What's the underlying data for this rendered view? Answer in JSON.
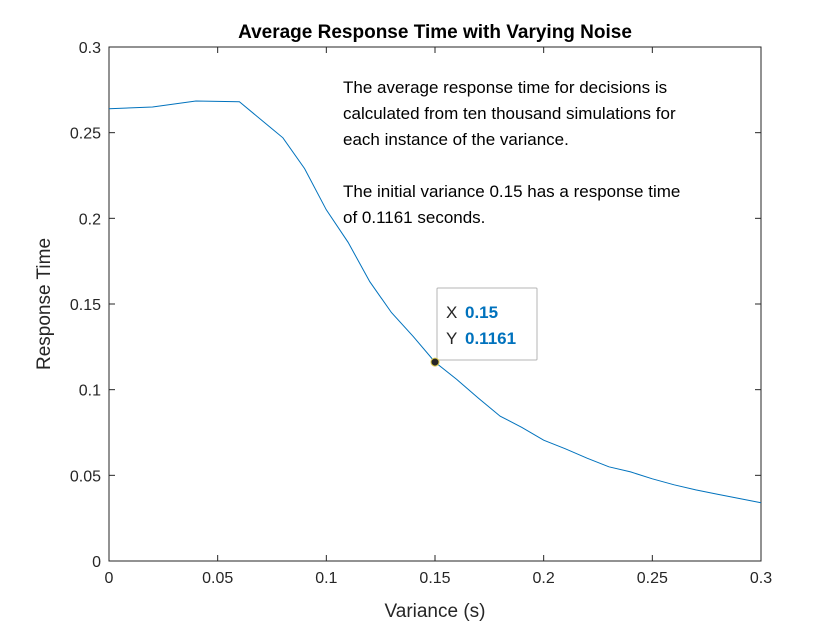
{
  "chart_data": {
    "type": "line",
    "title": "Average Response Time with Varying Noise",
    "xlabel": "Variance (s)",
    "ylabel": "Response Time",
    "xlim": [
      0,
      0.3
    ],
    "ylim": [
      0,
      0.3
    ],
    "xticks": [
      "0",
      "0.05",
      "0.1",
      "0.15",
      "0.2",
      "0.25",
      "0.3"
    ],
    "xtick_values": [
      0,
      0.05,
      0.1,
      0.15,
      0.2,
      0.25,
      0.3
    ],
    "yticks": [
      "0",
      "0.05",
      "0.1",
      "0.15",
      "0.2",
      "0.25",
      "0.3"
    ],
    "ytick_values": [
      0,
      0.05,
      0.1,
      0.15,
      0.2,
      0.25,
      0.3
    ],
    "grid": false,
    "series": [
      {
        "color": "#0072BD",
        "x": [
          0,
          0.02,
          0.04,
          0.06,
          0.08,
          0.09,
          0.1,
          0.11,
          0.12,
          0.13,
          0.14,
          0.15,
          0.16,
          0.17,
          0.18,
          0.19,
          0.2,
          0.21,
          0.22,
          0.23,
          0.24,
          0.25,
          0.26,
          0.27,
          0.28,
          0.29,
          0.3
        ],
        "y": [
          0.264,
          0.265,
          0.2685,
          0.268,
          0.247,
          0.229,
          0.205,
          0.186,
          0.163,
          0.145,
          0.131,
          0.1161,
          0.106,
          0.095,
          0.0845,
          0.078,
          0.0705,
          0.0655,
          0.06,
          0.055,
          0.052,
          0.048,
          0.0445,
          0.0415,
          0.039,
          0.0365,
          0.034
        ]
      }
    ],
    "annotations": [
      "The average response time for decisions is",
      "calculated from ten thousand simulations for",
      "each instance of the variance.",
      "The initial variance 0.15 has a response time",
      "of 0.1161 seconds."
    ],
    "datatip": {
      "x": 0.15,
      "y": 0.1161,
      "x_label": "X",
      "y_label": "Y",
      "x_text": "0.15",
      "y_text": "0.1161"
    }
  }
}
